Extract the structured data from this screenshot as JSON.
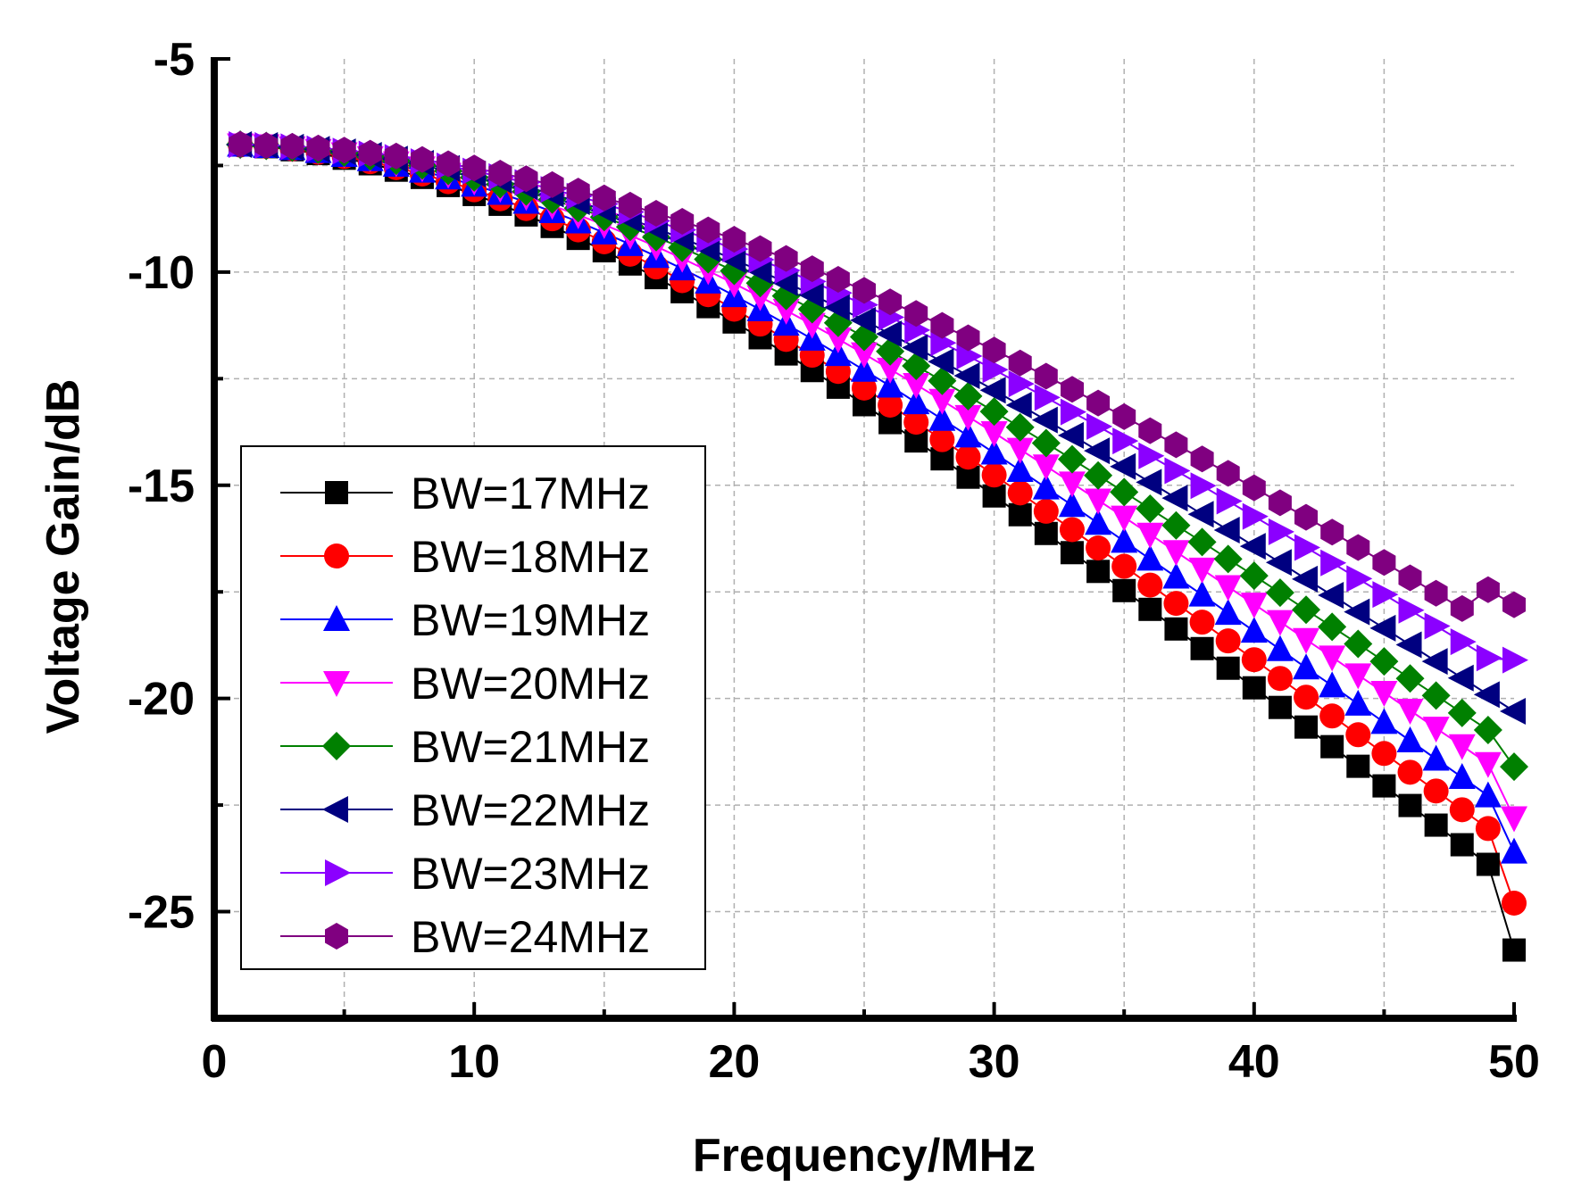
{
  "chart_data": {
    "type": "line",
    "title": "",
    "xlabel": "Frequency/MHz",
    "ylabel": "Voltage Gain/dB",
    "xlim": [
      0,
      50
    ],
    "ylim": [
      -27.5,
      -5
    ],
    "x_ticks": [
      0,
      10,
      20,
      30,
      40,
      50
    ],
    "x_tick_labels": [
      "0",
      "10",
      "20",
      "30",
      "40",
      "50"
    ],
    "y_ticks": [
      -5,
      -10,
      -15,
      -20,
      -25
    ],
    "y_tick_labels": [
      "-5",
      "-10",
      "-15",
      "-20",
      "-25"
    ],
    "grid": true,
    "legend_position": "lower-left",
    "x": [
      1,
      2,
      3,
      4,
      5,
      6,
      7,
      8,
      9,
      10,
      11,
      12,
      13,
      14,
      15,
      16,
      17,
      18,
      19,
      20,
      21,
      22,
      23,
      24,
      25,
      26,
      27,
      28,
      29,
      30,
      31,
      32,
      33,
      34,
      35,
      36,
      37,
      38,
      39,
      40,
      41,
      42,
      43,
      44,
      45,
      46,
      47,
      48,
      49,
      50
    ],
    "series": [
      {
        "name": "BW=17MHz",
        "color": "#000000",
        "marker": "square",
        "values": [
          -7.02,
          -7.06,
          -7.13,
          -7.22,
          -7.33,
          -7.46,
          -7.61,
          -7.78,
          -7.97,
          -8.18,
          -8.41,
          -8.66,
          -8.93,
          -9.21,
          -9.5,
          -9.81,
          -10.13,
          -10.46,
          -10.81,
          -11.17,
          -11.54,
          -11.92,
          -12.31,
          -12.7,
          -13.11,
          -13.53,
          -13.96,
          -14.38,
          -14.81,
          -15.25,
          -15.69,
          -16.13,
          -16.58,
          -17.02,
          -17.47,
          -17.91,
          -18.37,
          -18.83,
          -19.29,
          -19.75,
          -20.21,
          -20.67,
          -21.13,
          -21.59,
          -22.05,
          -22.51,
          -22.97,
          -23.43,
          -23.89,
          -25.9
        ]
      },
      {
        "name": "BW=18MHz",
        "color": "#ff0000",
        "marker": "circle",
        "values": [
          -7.02,
          -7.05,
          -7.11,
          -7.19,
          -7.29,
          -7.41,
          -7.55,
          -7.7,
          -7.88,
          -8.07,
          -8.28,
          -8.51,
          -8.75,
          -9.01,
          -9.29,
          -9.58,
          -9.88,
          -10.2,
          -10.53,
          -10.87,
          -11.22,
          -11.58,
          -11.95,
          -12.33,
          -12.72,
          -13.12,
          -13.52,
          -13.93,
          -14.34,
          -14.76,
          -15.18,
          -15.61,
          -16.04,
          -16.47,
          -16.9,
          -17.34,
          -17.77,
          -18.21,
          -18.65,
          -19.09,
          -19.53,
          -19.97,
          -20.41,
          -20.85,
          -21.29,
          -21.73,
          -22.17,
          -22.61,
          -23.05,
          -24.8
        ]
      },
      {
        "name": "BW=19MHz",
        "color": "#0000ff",
        "marker": "triangle-up",
        "values": [
          -7.02,
          -7.05,
          -7.1,
          -7.17,
          -7.26,
          -7.36,
          -7.49,
          -7.63,
          -7.79,
          -7.96,
          -8.15,
          -8.36,
          -8.58,
          -8.82,
          -9.08,
          -9.35,
          -9.63,
          -9.92,
          -10.23,
          -10.55,
          -10.88,
          -11.22,
          -11.57,
          -11.93,
          -12.3,
          -12.67,
          -13.06,
          -13.45,
          -13.84,
          -14.24,
          -14.65,
          -15.06,
          -15.47,
          -15.89,
          -16.31,
          -16.73,
          -17.15,
          -17.57,
          -18.0,
          -18.42,
          -18.85,
          -19.28,
          -19.7,
          -20.13,
          -20.56,
          -20.99,
          -21.42,
          -21.85,
          -22.28,
          -23.6
        ]
      },
      {
        "name": "BW=20MHz",
        "color": "#ff00ff",
        "marker": "triangle-down",
        "values": [
          -7.02,
          -7.04,
          -7.09,
          -7.15,
          -7.23,
          -7.32,
          -7.44,
          -7.56,
          -7.71,
          -7.87,
          -8.04,
          -8.23,
          -8.44,
          -8.66,
          -8.89,
          -9.14,
          -9.4,
          -9.68,
          -9.97,
          -10.27,
          -10.58,
          -10.9,
          -11.23,
          -11.57,
          -11.92,
          -12.28,
          -12.64,
          -13.01,
          -13.39,
          -13.77,
          -14.16,
          -14.55,
          -14.95,
          -15.35,
          -15.75,
          -16.15,
          -16.56,
          -16.97,
          -17.38,
          -17.79,
          -18.2,
          -18.62,
          -19.03,
          -19.45,
          -19.86,
          -20.28,
          -20.7,
          -21.11,
          -21.53,
          -22.8
        ]
      },
      {
        "name": "BW=21MHz",
        "color": "#008000",
        "marker": "diamond",
        "values": [
          -7.01,
          -7.04,
          -7.08,
          -7.13,
          -7.2,
          -7.29,
          -7.39,
          -7.5,
          -7.63,
          -7.78,
          -7.94,
          -8.11,
          -8.3,
          -8.5,
          -8.71,
          -8.94,
          -9.18,
          -9.43,
          -9.7,
          -9.97,
          -10.26,
          -10.56,
          -10.87,
          -11.19,
          -11.52,
          -11.86,
          -12.2,
          -12.55,
          -12.91,
          -13.27,
          -13.64,
          -14.01,
          -14.39,
          -14.77,
          -15.16,
          -15.55,
          -15.94,
          -16.33,
          -16.73,
          -17.12,
          -17.52,
          -17.92,
          -18.32,
          -18.72,
          -19.13,
          -19.53,
          -19.93,
          -20.34,
          -20.74,
          -21.6
        ]
      },
      {
        "name": "BW=22MHz",
        "color": "#000080",
        "marker": "triangle-left",
        "values": [
          -7.01,
          -7.03,
          -7.07,
          -7.12,
          -7.18,
          -7.26,
          -7.35,
          -7.45,
          -7.57,
          -7.7,
          -7.84,
          -8.0,
          -8.17,
          -8.35,
          -8.55,
          -8.76,
          -8.98,
          -9.21,
          -9.45,
          -9.71,
          -9.97,
          -10.25,
          -10.53,
          -10.83,
          -11.13,
          -11.45,
          -11.77,
          -12.1,
          -12.43,
          -12.77,
          -13.12,
          -13.47,
          -13.83,
          -14.19,
          -14.56,
          -14.93,
          -15.3,
          -15.68,
          -16.05,
          -16.43,
          -16.81,
          -17.2,
          -17.58,
          -17.97,
          -18.35,
          -18.74,
          -19.13,
          -19.52,
          -19.91,
          -20.3
        ]
      },
      {
        "name": "BW=23MHz",
        "color": "#8b00ff",
        "marker": "triangle-right",
        "values": [
          -7.01,
          -7.03,
          -7.06,
          -7.11,
          -7.16,
          -7.23,
          -7.31,
          -7.41,
          -7.51,
          -7.63,
          -7.76,
          -7.9,
          -8.06,
          -8.22,
          -8.4,
          -8.59,
          -8.8,
          -9.01,
          -9.23,
          -9.46,
          -9.71,
          -9.96,
          -10.22,
          -10.49,
          -10.77,
          -11.06,
          -11.36,
          -11.66,
          -11.97,
          -12.29,
          -12.62,
          -12.94,
          -13.28,
          -13.62,
          -13.96,
          -14.31,
          -14.66,
          -15.01,
          -15.37,
          -15.73,
          -16.09,
          -16.46,
          -16.82,
          -17.19,
          -17.56,
          -17.93,
          -18.3,
          -18.67,
          -19.05,
          -19.1
        ]
      },
      {
        "name": "BW=24MHz",
        "color": "#800080",
        "marker": "hexagon",
        "values": [
          -7.0,
          -7.03,
          -7.05,
          -7.09,
          -7.14,
          -7.21,
          -7.28,
          -7.36,
          -7.46,
          -7.56,
          -7.68,
          -7.81,
          -7.95,
          -8.1,
          -8.26,
          -8.43,
          -8.62,
          -8.81,
          -9.01,
          -9.23,
          -9.45,
          -9.68,
          -9.92,
          -10.17,
          -10.43,
          -10.7,
          -10.97,
          -11.25,
          -11.54,
          -11.83,
          -12.13,
          -12.44,
          -12.75,
          -13.07,
          -13.39,
          -13.72,
          -14.05,
          -14.38,
          -14.72,
          -15.06,
          -15.41,
          -15.75,
          -16.1,
          -16.46,
          -16.81,
          -17.17,
          -17.53,
          -17.89,
          -17.45,
          -17.8
        ]
      }
    ]
  }
}
